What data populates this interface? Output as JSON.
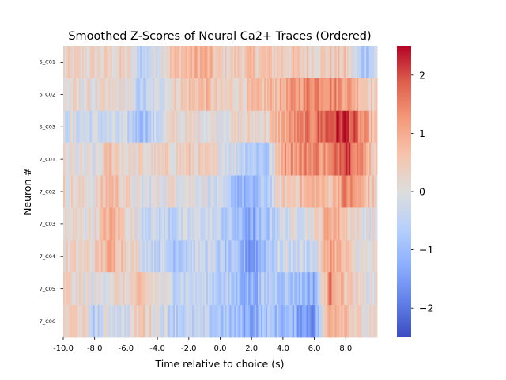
{
  "chart_data": {
    "type": "heatmap",
    "title": "Smoothed Z-Scores of Neural Ca2+ Traces (Ordered)",
    "xlabel": "Time relative to choice (s)",
    "ylabel": "Neuron #",
    "rows": [
      "5_C01",
      "5_C02",
      "5_C03",
      "7_C01",
      "7_C02",
      "7_C03",
      "7_C04",
      "7_C05",
      "7_C06"
    ],
    "x_range": [
      -10.0,
      10.0
    ],
    "x_ticks": [
      "-10.0",
      "-8.0",
      "-6.0",
      "-4.0",
      "-2.0",
      "0.0",
      "2.0",
      "4.0",
      "6.0",
      "8.0"
    ],
    "colormap": "coolwarm",
    "vmin": -2.5,
    "vmax": 2.5,
    "colorbar_ticks": [
      "2",
      "1",
      "0",
      "−1",
      "−2"
    ],
    "colorbar_values": [
      2,
      1,
      0,
      -1,
      -2
    ],
    "z_profiles": [
      {
        "row": "5_C01",
        "knots_x": [
          -10,
          -6,
          -5,
          -3,
          -1,
          0,
          2,
          4,
          6,
          8,
          9,
          10
        ],
        "knots_z": [
          0.2,
          0.3,
          -0.6,
          0.6,
          1.0,
          0.3,
          0.6,
          0.5,
          0.4,
          0.5,
          -0.8,
          -0.3
        ]
      },
      {
        "row": "5_C02",
        "knots_x": [
          -10,
          -6,
          -5,
          -3,
          -1,
          0,
          2,
          4,
          6,
          8,
          9,
          10
        ],
        "knots_z": [
          0.1,
          0.1,
          -0.7,
          0.3,
          0.8,
          0.2,
          0.5,
          0.9,
          1.6,
          1.3,
          0.8,
          0.3
        ]
      },
      {
        "row": "5_C03",
        "knots_x": [
          -10,
          -8,
          -6,
          -5,
          -3,
          0,
          3,
          4,
          6,
          7,
          8,
          9,
          10
        ],
        "knots_z": [
          -0.2,
          -0.3,
          -0.4,
          -0.9,
          0.2,
          0.1,
          0.3,
          1.0,
          1.6,
          2.0,
          2.3,
          1.3,
          0.5
        ]
      },
      {
        "row": "7_C01",
        "knots_x": [
          -10,
          -8,
          -7,
          -6,
          -4,
          -2,
          0,
          2,
          3,
          4,
          6,
          7,
          8,
          9,
          10
        ],
        "knots_z": [
          0.1,
          -0.2,
          0.7,
          0.2,
          0.2,
          0.4,
          0.1,
          -0.6,
          -0.8,
          1.2,
          1.5,
          1.2,
          2.4,
          1.3,
          0.4
        ]
      },
      {
        "row": "7_C02",
        "knots_x": [
          -10,
          -8,
          -7,
          -6,
          -5,
          -3,
          -1,
          1,
          2,
          3,
          4,
          6,
          7,
          8,
          9,
          10
        ],
        "knots_z": [
          0.3,
          0.1,
          0.9,
          0.3,
          -0.2,
          0.2,
          0.0,
          -1.0,
          -1.3,
          -0.6,
          0.4,
          0.9,
          0.6,
          1.5,
          0.9,
          0.3
        ]
      },
      {
        "row": "7_C03",
        "knots_x": [
          -10,
          -8,
          -7,
          -6,
          -5,
          -3,
          -1,
          1,
          2,
          3,
          4,
          6,
          7,
          8,
          9,
          10
        ],
        "knots_z": [
          0.1,
          0.2,
          1.0,
          0.4,
          -0.2,
          -0.5,
          -0.2,
          -0.9,
          -1.4,
          -0.8,
          -0.2,
          0.1,
          1.2,
          0.6,
          0.0,
          0.0
        ]
      },
      {
        "row": "7_C04",
        "knots_x": [
          -10,
          -8,
          -7,
          -6,
          -5,
          -3,
          -1,
          1,
          2,
          3,
          4,
          6,
          7,
          8,
          9,
          10
        ],
        "knots_z": [
          0.2,
          0.3,
          1.0,
          0.6,
          -0.1,
          -0.7,
          -0.3,
          -1.0,
          -1.6,
          -0.7,
          -0.3,
          -0.4,
          1.3,
          0.5,
          0.0,
          0.0
        ]
      },
      {
        "row": "7_C05",
        "knots_x": [
          -10,
          -8,
          -7,
          -6,
          -5,
          -3,
          -1,
          1,
          2,
          3,
          4,
          6,
          7,
          8,
          9,
          10
        ],
        "knots_z": [
          0.4,
          -0.1,
          0.2,
          0.2,
          0.5,
          -0.3,
          -0.4,
          -0.9,
          -1.3,
          -0.6,
          -0.7,
          -1.2,
          1.5,
          0.6,
          0.0,
          0.0
        ]
      },
      {
        "row": "7_C06",
        "knots_x": [
          -10,
          -9,
          -8,
          -7,
          -6,
          -5,
          -3,
          -1,
          1,
          2,
          3,
          4,
          6,
          7,
          8,
          9,
          10
        ],
        "knots_z": [
          0.3,
          0.5,
          -0.6,
          0.0,
          -0.3,
          0.6,
          -0.5,
          -0.6,
          -1.0,
          -1.3,
          -0.8,
          -1.0,
          -1.6,
          1.2,
          0.9,
          0.1,
          0.0
        ]
      }
    ]
  }
}
